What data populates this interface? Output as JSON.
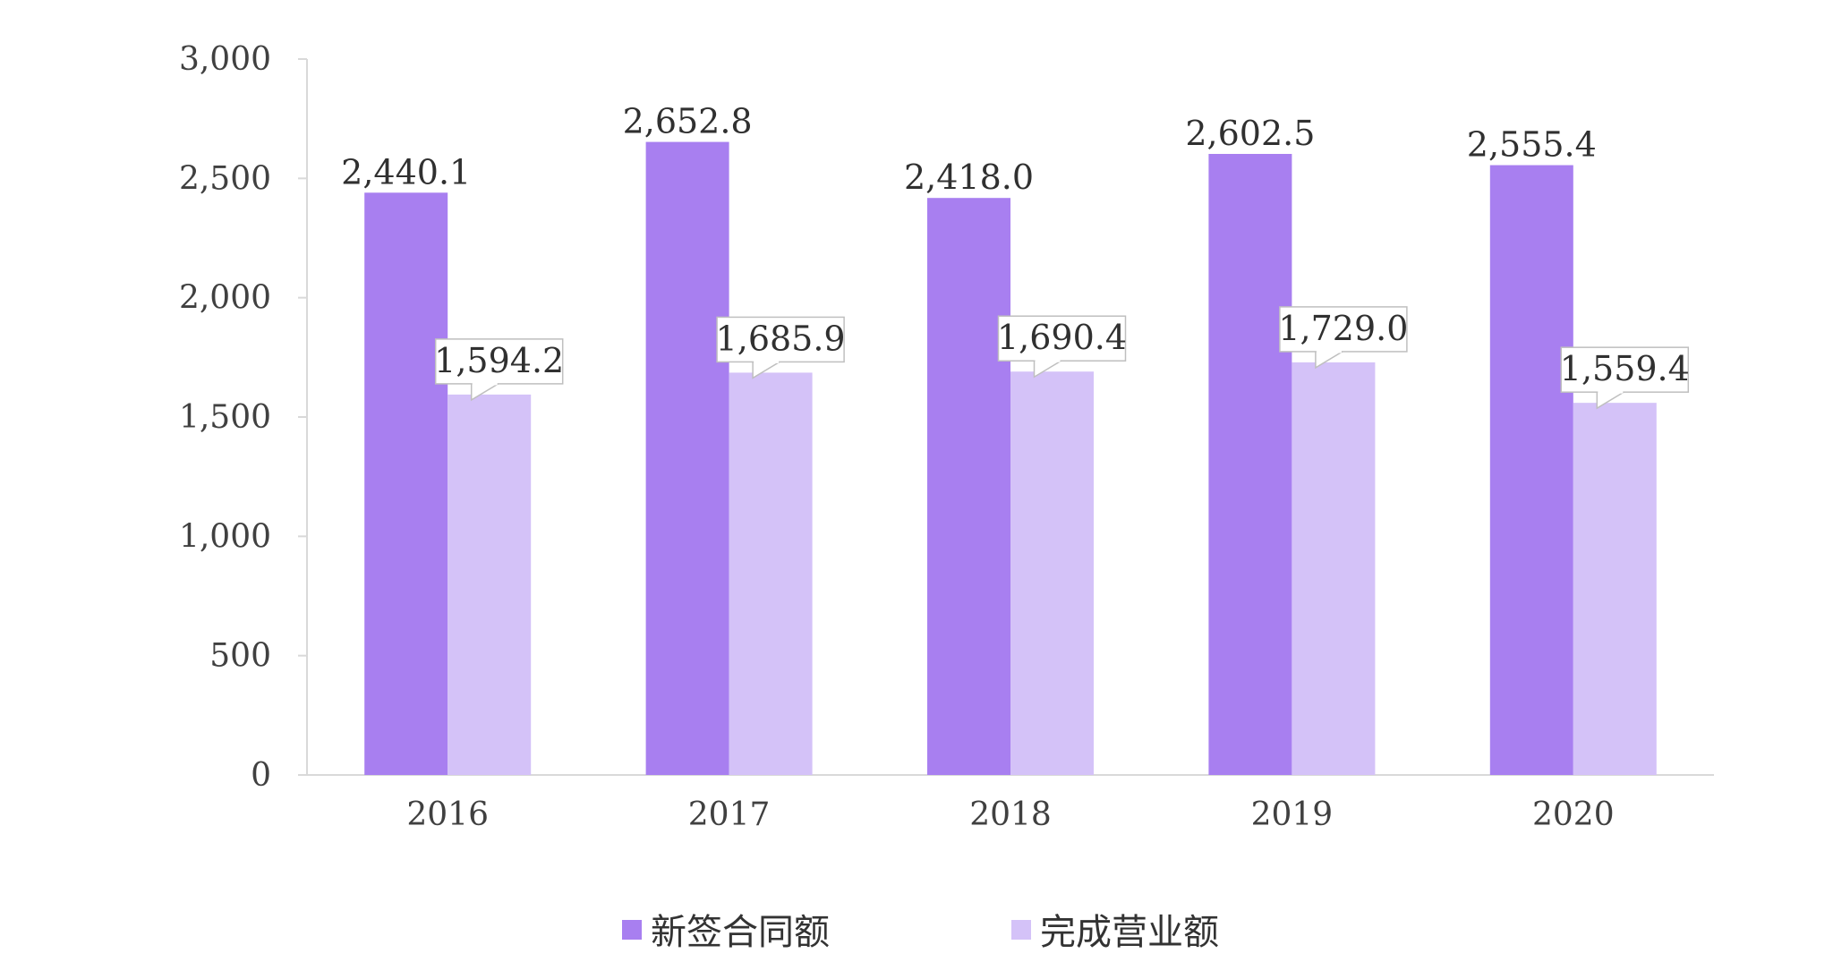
{
  "chart_data": {
    "type": "bar",
    "categories": [
      "2016",
      "2017",
      "2018",
      "2019",
      "2020"
    ],
    "series": [
      {
        "name": "新签合同额",
        "values": [
          2440.1,
          2652.8,
          2418.0,
          2602.5,
          2555.4
        ],
        "labels": [
          "2,440.1",
          "2,652.8",
          "2,418.0",
          "2,602.5",
          "2,555.4"
        ],
        "color": "#a87ff0"
      },
      {
        "name": "完成营业额",
        "values": [
          1594.2,
          1685.9,
          1690.4,
          1729.0,
          1559.4
        ],
        "labels": [
          "1,594.2",
          "1,685.9",
          "1,690.4",
          "1,729.0",
          "1,559.4"
        ],
        "color": "#d4c2f8"
      }
    ],
    "yticks": [
      "0",
      "500",
      "1,000",
      "1,500",
      "2,000",
      "2,500",
      "3,000"
    ],
    "ylim": [
      0,
      3000
    ],
    "legend_position": "bottom",
    "grid": false
  }
}
